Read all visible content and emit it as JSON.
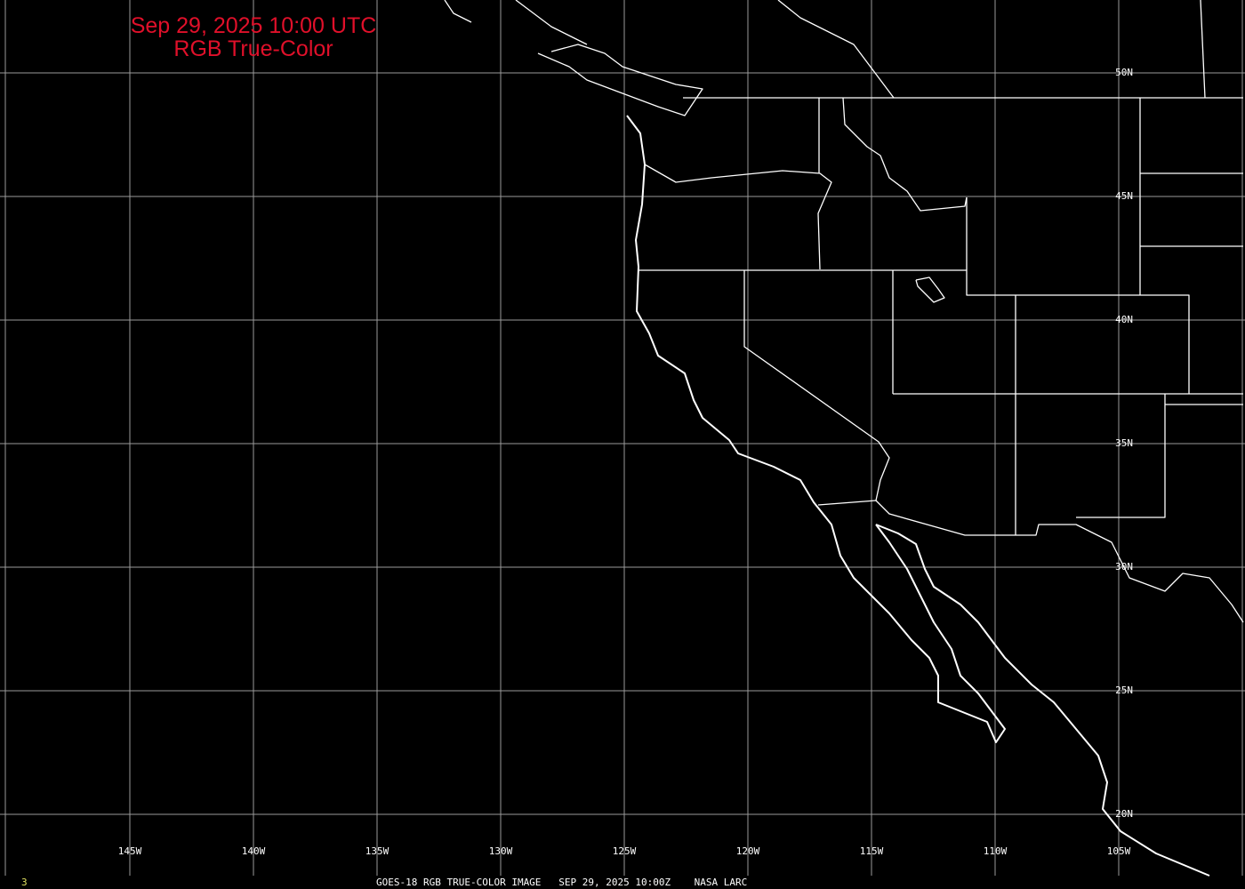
{
  "title": {
    "line1": "Sep 29, 2025 10:00 UTC",
    "line2": "RGB True-Color",
    "color": "#e0102a"
  },
  "grid": {
    "longitudes": [
      "145W",
      "140W",
      "135W",
      "130W",
      "125W",
      "120W",
      "115W",
      "110W",
      "105W"
    ],
    "latitudes": [
      "50N",
      "45N",
      "40N",
      "35N",
      "30N",
      "25N",
      "20N"
    ],
    "color": "#9a9a9a"
  },
  "footer": {
    "frame_number": "3",
    "caption": "GOES-18 RGB TRUE-COLOR IMAGE   SEP 29, 2025 10:00Z    NASA LARC"
  },
  "map": {
    "projection": "lat-lon",
    "background": "#000000",
    "boundary_color": "#ffffff"
  }
}
